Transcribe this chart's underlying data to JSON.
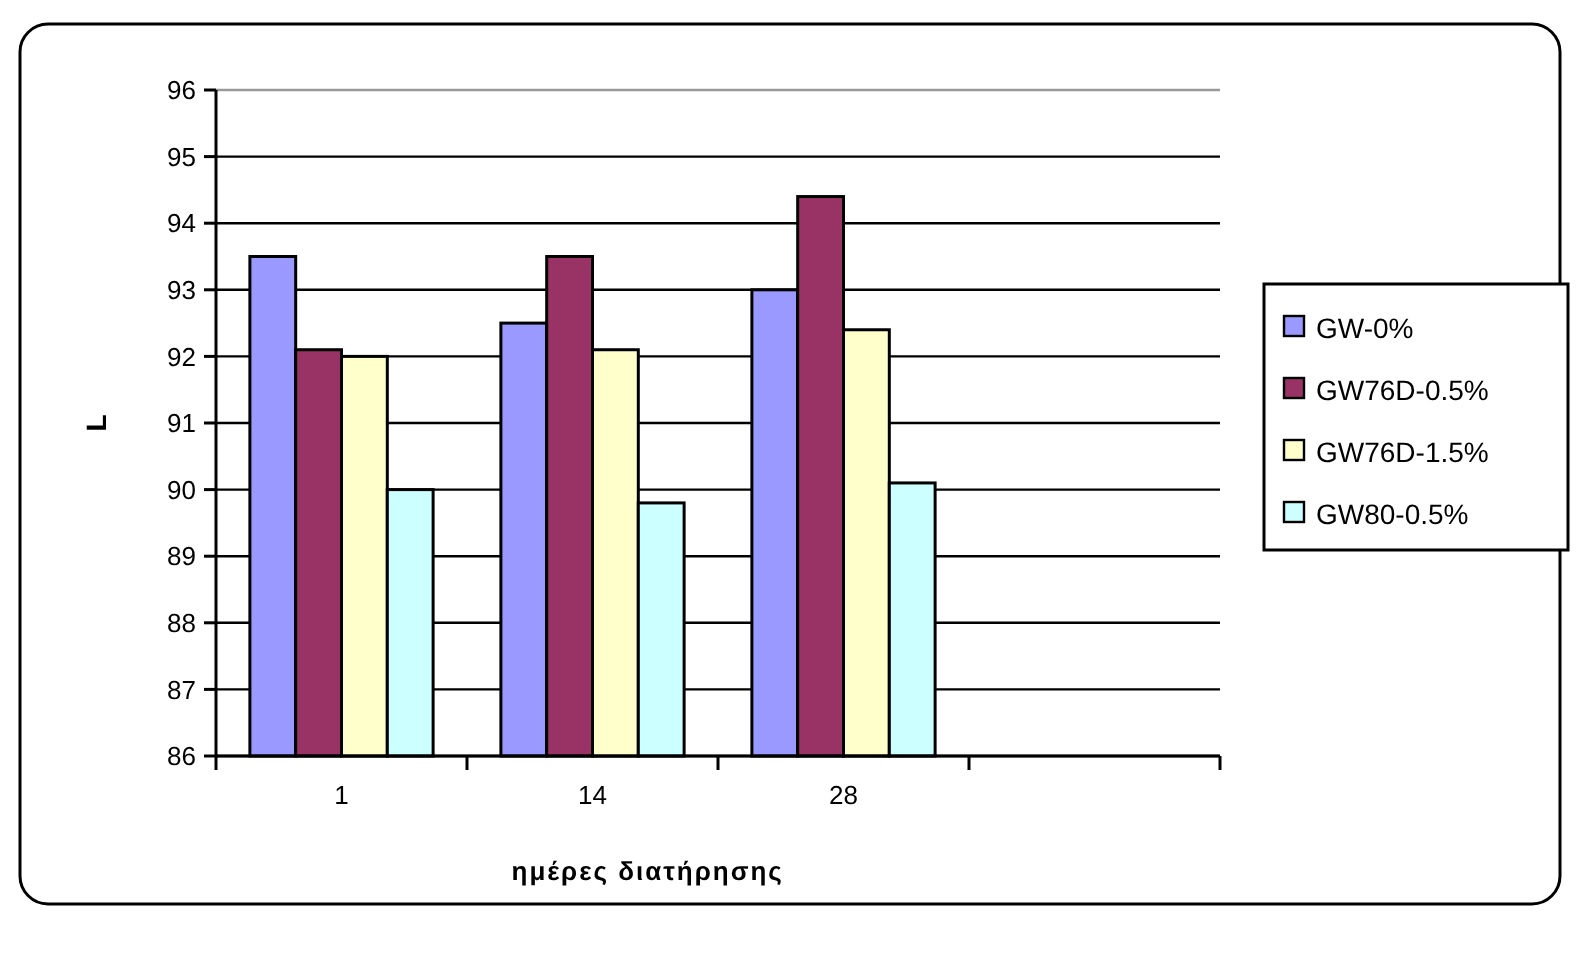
{
  "chart_data": {
    "type": "bar",
    "xlabel": "ημέρες διατήρησης",
    "ylabel": "L",
    "categories": [
      "1",
      "14",
      "28",
      null
    ],
    "series": [
      {
        "name": "GW-0%",
        "color": "#9999ff",
        "values": [
          93.5,
          92.5,
          93.0,
          null
        ]
      },
      {
        "name": "GW76D-0.5%",
        "color": "#993366",
        "values": [
          92.1,
          93.5,
          94.4,
          null
        ]
      },
      {
        "name": "GW76D-1.5%",
        "color": "#ffffcc",
        "values": [
          92.0,
          92.1,
          92.4,
          null
        ]
      },
      {
        "name": "GW80-0.5%",
        "color": "#ccffff",
        "values": [
          90.0,
          89.8,
          90.1,
          null
        ]
      }
    ],
    "ylim": [
      86,
      96
    ],
    "yticks": [
      86,
      87,
      88,
      89,
      90,
      91,
      92,
      93,
      94,
      95,
      96
    ],
    "grid": "y",
    "legend": "right"
  }
}
